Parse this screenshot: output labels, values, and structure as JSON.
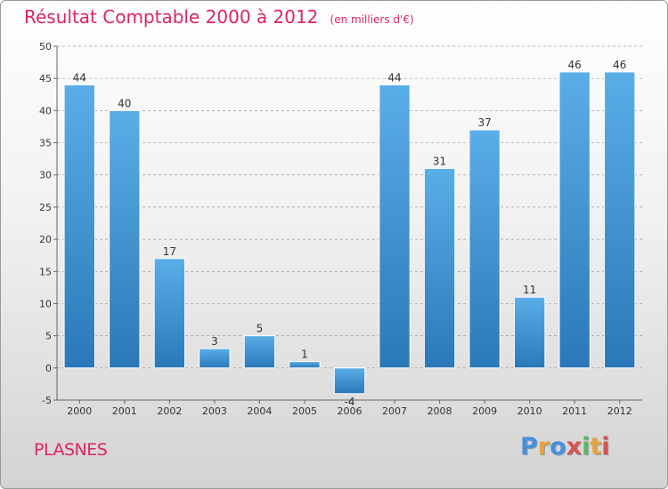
{
  "header": {
    "title": "Résultat Comptable 2000 à 2012",
    "units": "(en milliers d'€)"
  },
  "footer": {
    "town": "PLASNES",
    "brand": [
      "P",
      "r",
      "o",
      "x",
      "i",
      "t",
      "i"
    ],
    "brand_colors": [
      "#4a90d9",
      "#e8a33a",
      "#4a90d9",
      "#d9534f",
      "#5cb85c",
      "#e8a33a",
      "#d9534f"
    ]
  },
  "colors": {
    "bar_top": "#5aaee8",
    "bar_bottom": "#2a78b8",
    "title": "#e0245e",
    "grid": "#9a9a9a"
  },
  "chart_data": {
    "type": "bar",
    "title": "Résultat Comptable 2000 à 2012",
    "units": "(en milliers d'€)",
    "xlabel": "",
    "ylabel": "",
    "categories": [
      "2000",
      "2001",
      "2002",
      "2003",
      "2004",
      "2005",
      "2006",
      "2007",
      "2008",
      "2009",
      "2010",
      "2011",
      "2012"
    ],
    "values": [
      44,
      40,
      17,
      3,
      5,
      1,
      -4,
      44,
      31,
      37,
      11,
      46,
      46
    ],
    "ylim": [
      -5,
      50
    ],
    "yticks": [
      -5,
      0,
      5,
      10,
      15,
      20,
      25,
      30,
      35,
      40,
      45,
      50
    ],
    "grid": true
  }
}
